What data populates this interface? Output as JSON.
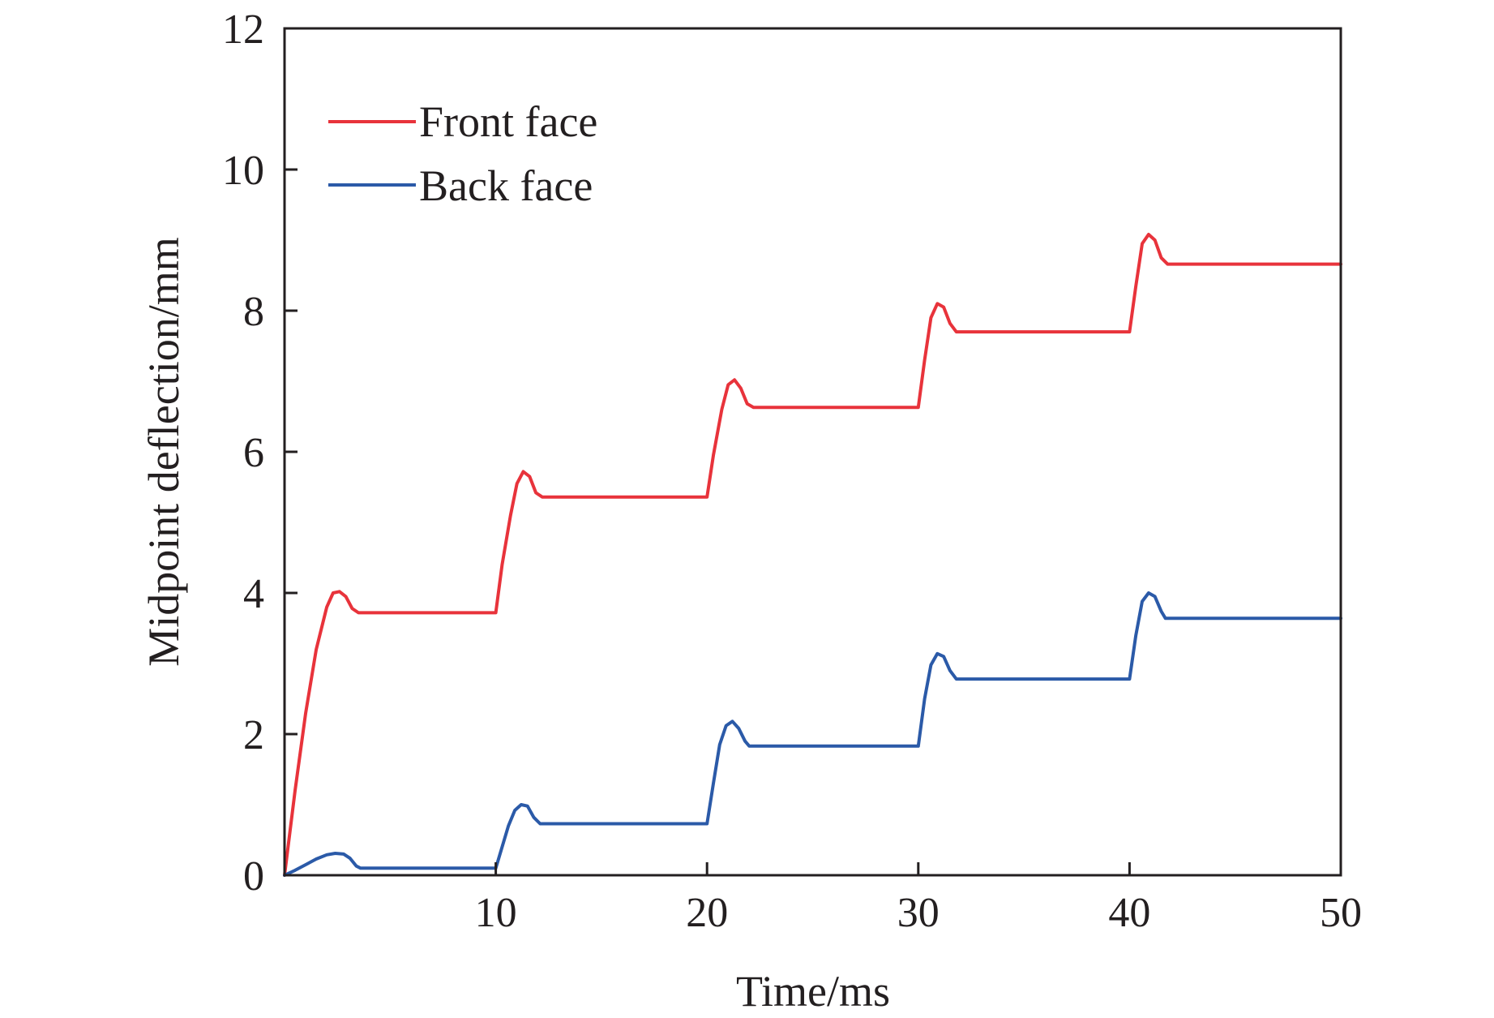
{
  "chart_data": {
    "type": "line",
    "title": "",
    "xlabel": "Time/ms",
    "ylabel": "Midpoint deflection/mm",
    "xlim": [
      0,
      50
    ],
    "ylim": [
      0,
      12
    ],
    "x_ticks": [
      10,
      20,
      30,
      40,
      50
    ],
    "x_tick_labels": [
      "10",
      "20",
      "30",
      "40",
      "50"
    ],
    "y_ticks": [
      0,
      2,
      4,
      6,
      8,
      10,
      12
    ],
    "y_tick_labels": [
      "0",
      "2",
      "4",
      "6",
      "8",
      "10",
      "12"
    ],
    "grid": false,
    "legend_position": "top-left",
    "series": [
      {
        "name": "Front face",
        "color": "#e8333b",
        "x": [
          0,
          0.5,
          1.0,
          1.5,
          2.0,
          2.3,
          2.6,
          2.9,
          3.2,
          3.5,
          10.0,
          10.3,
          10.7,
          11.0,
          11.3,
          11.6,
          11.9,
          12.2,
          20.0,
          20.3,
          20.7,
          21.0,
          21.3,
          21.6,
          21.9,
          22.2,
          30.0,
          30.3,
          30.6,
          30.9,
          31.2,
          31.5,
          31.8,
          40.0,
          40.3,
          40.6,
          40.9,
          41.2,
          41.5,
          41.8,
          50.0
        ],
        "y": [
          0,
          1.2,
          2.3,
          3.2,
          3.8,
          4.0,
          4.02,
          3.95,
          3.78,
          3.72,
          3.72,
          4.4,
          5.1,
          5.55,
          5.72,
          5.65,
          5.42,
          5.36,
          5.36,
          5.95,
          6.6,
          6.95,
          7.02,
          6.9,
          6.68,
          6.63,
          6.63,
          7.3,
          7.9,
          8.1,
          8.05,
          7.82,
          7.7,
          7.7,
          8.35,
          8.95,
          9.08,
          9.0,
          8.75,
          8.66,
          8.66
        ]
      },
      {
        "name": "Back face",
        "color": "#2b5aa8",
        "x": [
          0,
          0.5,
          1.0,
          1.5,
          2.0,
          2.4,
          2.8,
          3.1,
          3.4,
          3.6,
          10.0,
          10.3,
          10.6,
          10.9,
          11.2,
          11.5,
          11.8,
          12.1,
          20.0,
          20.3,
          20.6,
          20.9,
          21.2,
          21.5,
          21.8,
          22.0,
          30.0,
          30.3,
          30.6,
          30.9,
          31.2,
          31.5,
          31.8,
          40.0,
          40.3,
          40.6,
          40.9,
          41.2,
          41.5,
          41.7,
          50.0
        ],
        "y": [
          0,
          0.07,
          0.15,
          0.23,
          0.29,
          0.31,
          0.3,
          0.24,
          0.13,
          0.1,
          0.1,
          0.4,
          0.7,
          0.92,
          1.0,
          0.98,
          0.82,
          0.73,
          0.73,
          1.3,
          1.85,
          2.12,
          2.18,
          2.08,
          1.9,
          1.83,
          1.83,
          2.5,
          2.98,
          3.14,
          3.1,
          2.9,
          2.78,
          2.78,
          3.4,
          3.88,
          4.0,
          3.95,
          3.74,
          3.64,
          3.64
        ]
      }
    ]
  }
}
